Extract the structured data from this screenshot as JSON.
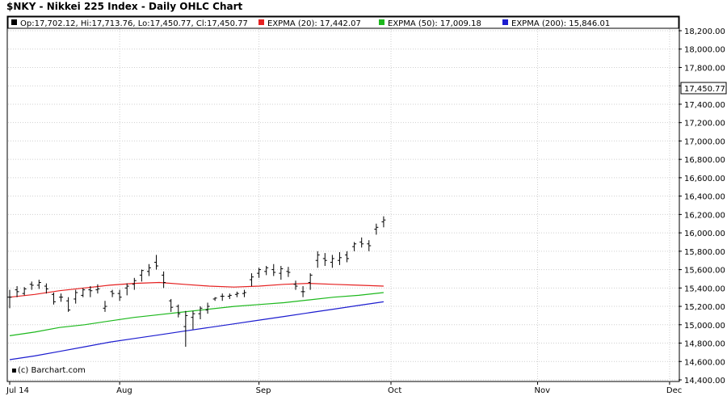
{
  "title": "$NKY - Nikkei 225 Index - Daily OHLC Chart",
  "legend": {
    "ohlc": "Op:17,702.12, Hi:17,713.76, Lo:17,450.77, Cl:17,450.77",
    "ema20": "EXPMA (20): 17,442.07",
    "ema50": "EXPMA (50): 17,009.18",
    "ema200": "EXPMA (200): 15,846.01"
  },
  "copyright": "(c) Barchart.com",
  "last_price_label": "17,450.77",
  "colors": {
    "ohlc": "#000000",
    "ema20": "#e52020",
    "ema50": "#1cb81c",
    "ema200": "#1c1ccf",
    "last_price_box": "#ffffff"
  },
  "chart_data": {
    "type": "line",
    "subtype": "ohlc with moving averages",
    "y_axis": {
      "min": 14400,
      "max": 18200,
      "step": 200,
      "position": "right",
      "tick_labels": [
        "14,400.00",
        "14,600.00",
        "14,800.00",
        "15,000.00",
        "15,200.00",
        "15,400.00",
        "15,600.00",
        "15,800.00",
        "16,000.00",
        "16,200.00",
        "16,400.00",
        "16,600.00",
        "16,800.00",
        "17,000.00",
        "17,200.00",
        "17,400.00",
        "17,600.00",
        "17,800.00",
        "18,000.00",
        "18,200.00"
      ]
    },
    "x_axis": {
      "labels": [
        "Jul 14",
        "Aug",
        "Sep",
        "Oct",
        "Nov",
        "Dec"
      ],
      "label_index": [
        0,
        15,
        34,
        52,
        72,
        90
      ]
    },
    "grid": true,
    "ohlc": [
      [
        15300,
        15380,
        15180,
        15300
      ],
      [
        15380,
        15420,
        15300,
        15360
      ],
      [
        15340,
        15410,
        15320,
        15390
      ],
      [
        15440,
        15470,
        15380,
        15430
      ],
      [
        15430,
        15490,
        15390,
        15460
      ],
      [
        15420,
        15450,
        15340,
        15390
      ],
      [
        15330,
        15350,
        15220,
        15250
      ],
      [
        15300,
        15340,
        15250,
        15300
      ],
      [
        15260,
        15300,
        15140,
        15160
      ],
      [
        15280,
        15380,
        15230,
        15350
      ],
      [
        15320,
        15400,
        15300,
        15380
      ],
      [
        15380,
        15420,
        15300,
        15370
      ],
      [
        15380,
        15440,
        15340,
        15390
      ],
      [
        15180,
        15260,
        15140,
        15200
      ],
      [
        15360,
        15380,
        15300,
        15340
      ],
      [
        15340,
        15380,
        15260,
        15300
      ],
      [
        15400,
        15450,
        15320,
        15420
      ],
      [
        15440,
        15510,
        15380,
        15480
      ],
      [
        15540,
        15600,
        15470,
        15590
      ],
      [
        15580,
        15660,
        15530,
        15620
      ],
      [
        15680,
        15760,
        15600,
        15640
      ],
      [
        15540,
        15580,
        15400,
        15460
      ],
      [
        15260,
        15280,
        15140,
        15190
      ],
      [
        15200,
        15220,
        15080,
        15120
      ],
      [
        14980,
        15150,
        14760,
        15100
      ],
      [
        15080,
        15150,
        14950,
        15120
      ],
      [
        15120,
        15200,
        15060,
        15180
      ],
      [
        15160,
        15240,
        15120,
        15200
      ],
      [
        15280,
        15300,
        15260,
        15290
      ],
      [
        15310,
        15340,
        15260,
        15310
      ],
      [
        15310,
        15340,
        15280,
        15320
      ],
      [
        15330,
        15360,
        15300,
        15340
      ],
      [
        15340,
        15380,
        15300,
        15350
      ],
      [
        15490,
        15560,
        15420,
        15520
      ],
      [
        15560,
        15620,
        15510,
        15600
      ],
      [
        15580,
        15640,
        15540,
        15620
      ],
      [
        15600,
        15660,
        15530,
        15570
      ],
      [
        15560,
        15640,
        15490,
        15610
      ],
      [
        15580,
        15630,
        15520,
        15570
      ],
      [
        15440,
        15480,
        15380,
        15420
      ],
      [
        15360,
        15420,
        15300,
        15360
      ],
      [
        15460,
        15560,
        15380,
        15540
      ],
      [
        15700,
        15800,
        15620,
        15760
      ],
      [
        15720,
        15780,
        15640,
        15700
      ],
      [
        15680,
        15760,
        15620,
        15720
      ],
      [
        15700,
        15790,
        15650,
        15730
      ],
      [
        15760,
        15800,
        15680,
        15720
      ],
      [
        15850,
        15900,
        15800,
        15880
      ],
      [
        15900,
        15950,
        15840,
        15880
      ],
      [
        15880,
        15920,
        15800,
        15860
      ],
      [
        16040,
        16100,
        15980,
        16060
      ],
      [
        16120,
        16180,
        16060,
        16140
      ]
    ],
    "series": [
      {
        "name": "EXPMA (20)",
        "values": [
          15300,
          15330,
          15370,
          15400,
          15430,
          15450,
          15460,
          15440,
          15420,
          15410,
          15420,
          15440,
          15450,
          15440,
          15430,
          15420
        ]
      },
      {
        "name": "EXPMA (50)",
        "values": [
          14880,
          14920,
          14970,
          15000,
          15040,
          15080,
          15110,
          15140,
          15170,
          15200,
          15220,
          15240,
          15270,
          15300,
          15320,
          15350
        ]
      },
      {
        "name": "EXPMA (200)",
        "values": [
          14620,
          14660,
          14710,
          14760,
          14810,
          14850,
          14890,
          14930,
          14970,
          15010,
          15050,
          15090,
          15130,
          15170,
          15210,
          15250
        ]
      }
    ]
  }
}
